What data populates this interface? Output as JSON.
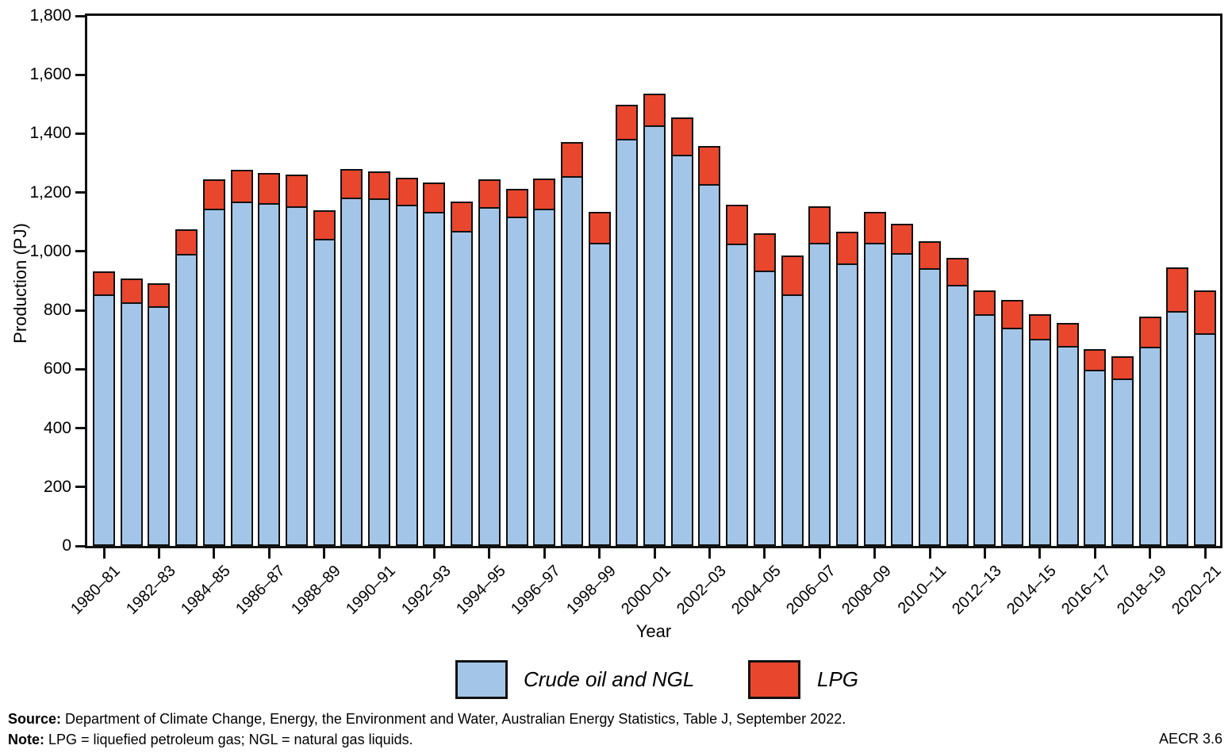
{
  "chart_data": {
    "type": "bar",
    "stacked": true,
    "title": "",
    "xlabel": "Year",
    "ylabel": "Production (PJ)",
    "ylim": [
      0,
      1800
    ],
    "ytick_interval": 200,
    "ytick_labels": [
      "0",
      "200",
      "400",
      "600",
      "800",
      "1,000",
      "1,200",
      "1,400",
      "1,600",
      "1,800"
    ],
    "grid": false,
    "legend_position": "bottom",
    "categories": [
      "1980–81",
      "1981–82",
      "1982–83",
      "1983–84",
      "1984–85",
      "1985–86",
      "1986–87",
      "1987–88",
      "1988–89",
      "1989–90",
      "1990–91",
      "1991–92",
      "1992–93",
      "1993–94",
      "1994–95",
      "1995–96",
      "1996–97",
      "1997–98",
      "1998–99",
      "1999–00",
      "2000–01",
      "2001–02",
      "2002–03",
      "2003–04",
      "2004–05",
      "2005–06",
      "2006–07",
      "2007–08",
      "2008–09",
      "2009–10",
      "2010–11",
      "2011–12",
      "2012–13",
      "2013–14",
      "2014–15",
      "2015–16",
      "2016–17",
      "2017–18",
      "2018–19",
      "2019–20",
      "2020–21"
    ],
    "xtick_labels": [
      "1980–81",
      "1982–83",
      "1984–85",
      "1986–87",
      "1988–89",
      "1990–91",
      "1992–93",
      "1994–95",
      "1996–97",
      "1998–99",
      "2000–01",
      "2002–03",
      "2004–05",
      "2006–07",
      "2008–09",
      "2010–11",
      "2012–13",
      "2014–15",
      "2016–17",
      "2018–19",
      "2020–21"
    ],
    "series": [
      {
        "name": "Crude oil and NGL",
        "color": "#A3C6E8",
        "values": [
          855,
          827,
          814,
          991,
          1144,
          1170,
          1164,
          1153,
          1042,
          1182,
          1180,
          1158,
          1134,
          1070,
          1150,
          1118,
          1146,
          1255,
          1030,
          1383,
          1428,
          1329,
          1230,
          1027,
          935,
          855,
          1030,
          959,
          1029,
          995,
          943,
          887,
          786,
          740,
          702,
          680,
          597,
          568,
          676,
          797,
          723
        ]
      },
      {
        "name": "LPG",
        "color": "#E9462E",
        "values": [
          76,
          80,
          79,
          84,
          102,
          108,
          103,
          108,
          99,
          99,
          93,
          93,
          99,
          100,
          95,
          95,
          102,
          116,
          104,
          116,
          108,
          125,
          129,
          131,
          128,
          130,
          123,
          107,
          105,
          99,
          93,
          90,
          81,
          96,
          84,
          76,
          72,
          77,
          104,
          150,
          144
        ]
      }
    ]
  },
  "footer": {
    "source_label": "Source:",
    "source_text": " Department of Climate Change, Energy, the Environment and Water, Australian Energy Statistics, Table J, September 2022.",
    "note_label": "Note:",
    "note_text": " LPG = liquefied petroleum gas; NGL = natural gas liquids.",
    "figure_code": "AECR 3.6"
  }
}
